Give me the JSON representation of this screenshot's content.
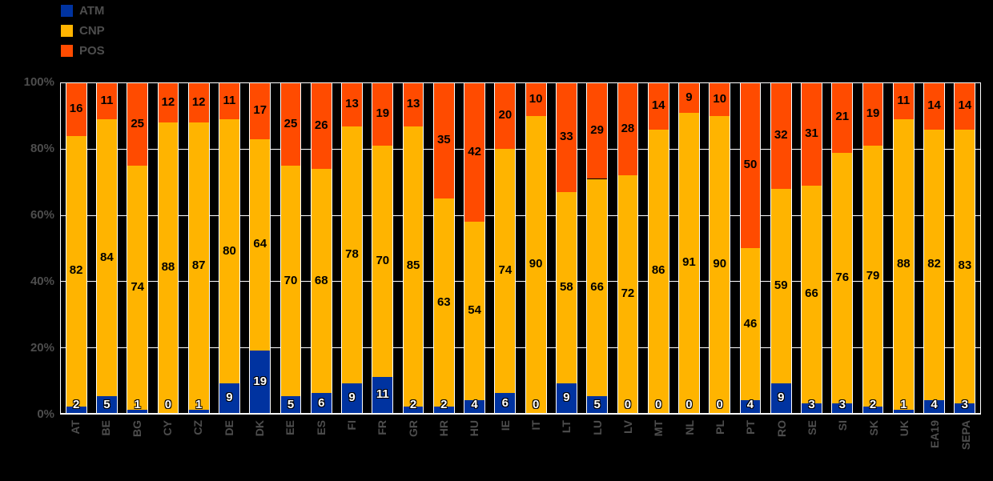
{
  "colors": {
    "background": "#000000",
    "grid": "#ffffff",
    "axis_text": "#4d4d4d",
    "atm_blue": "#0033a0",
    "cnp_yellow": "#ffb400",
    "pos_orange": "#ff4b00"
  },
  "legend": {
    "items": [
      {
        "label": "ATM",
        "color": "#0033a0"
      },
      {
        "label": "CNP",
        "color": "#ffb400"
      },
      {
        "label": "POS",
        "color": "#ff4b00"
      }
    ]
  },
  "chart_data": {
    "type": "bar",
    "stacked": true,
    "percent_scale": true,
    "title": "",
    "xlabel": "",
    "ylabel": "",
    "ylim": [
      0,
      100
    ],
    "grid": true,
    "legend_position": "top-left",
    "x_tick_rotation": -90,
    "y_ticks": [
      "100%",
      "80%",
      "60%",
      "40%",
      "20%",
      "0%"
    ],
    "categories": [
      "AT",
      "BE",
      "BG",
      "CY",
      "CZ",
      "DE",
      "DK",
      "EE",
      "ES",
      "FI",
      "FR",
      "GR",
      "HR",
      "HU",
      "IE",
      "IT",
      "LT",
      "LU",
      "LV",
      "MT",
      "NL",
      "PL",
      "PT",
      "RO",
      "SE",
      "SI",
      "SK",
      "UK",
      "EA19",
      "SEPA"
    ],
    "series": [
      {
        "name": "ATM",
        "color": "#0033a0",
        "label_color": "#ffffff",
        "values": [
          2,
          5,
          1,
          0,
          1,
          9,
          19,
          5,
          6,
          9,
          11,
          2,
          2,
          4,
          6,
          0,
          9,
          5,
          0,
          0,
          0,
          0,
          4,
          9,
          3,
          3,
          2,
          1,
          4,
          3
        ]
      },
      {
        "name": "CNP",
        "color": "#ffb400",
        "label_color": "#000000",
        "values": [
          82,
          84,
          74,
          88,
          87,
          80,
          64,
          70,
          68,
          78,
          70,
          85,
          63,
          54,
          74,
          90,
          58,
          66,
          72,
          86,
          91,
          90,
          46,
          59,
          66,
          76,
          79,
          88,
          82,
          83
        ]
      },
      {
        "name": "POS",
        "color": "#ff4b00",
        "label_color": "#000000",
        "values": [
          16,
          11,
          25,
          12,
          12,
          11,
          17,
          25,
          26,
          13,
          19,
          13,
          35,
          42,
          20,
          10,
          33,
          29,
          28,
          14,
          9,
          10,
          50,
          32,
          31,
          21,
          19,
          11,
          14,
          14
        ]
      }
    ]
  }
}
